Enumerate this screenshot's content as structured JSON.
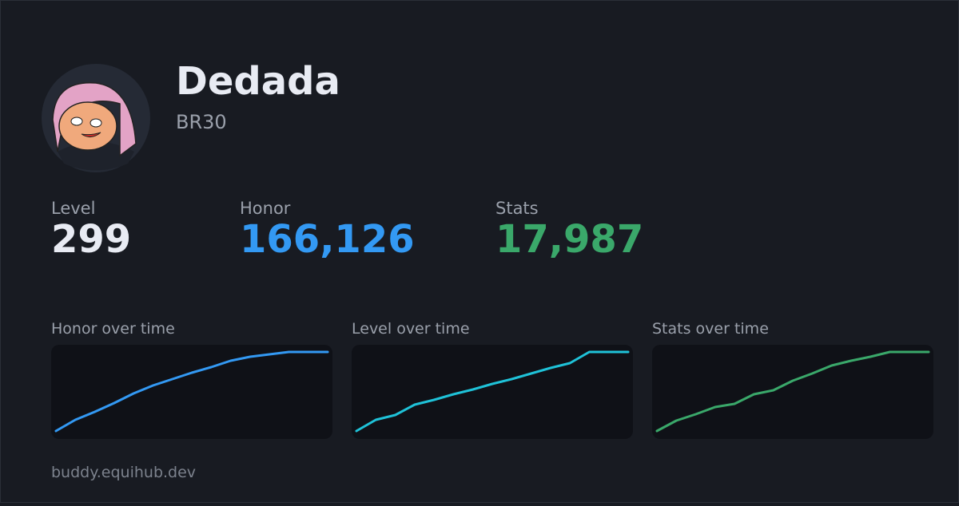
{
  "profile": {
    "name": "Dedada",
    "tag": "BR30"
  },
  "stats": [
    {
      "label": "Level",
      "value": "299",
      "color": "#e8ebf3"
    },
    {
      "label": "Honor",
      "value": "166,126",
      "color": "#3399f3"
    },
    {
      "label": "Stats",
      "value": "17,987",
      "color": "#3aa86a"
    }
  ],
  "charts": [
    {
      "type": "line",
      "title": "Honor over time",
      "color": "#3399f3",
      "values": [
        0,
        14,
        24,
        35,
        47,
        57,
        65,
        73,
        80,
        88,
        93,
        96,
        99,
        99,
        99
      ]
    },
    {
      "type": "line",
      "title": "Level over time",
      "color": "#1fc2d8",
      "values": [
        0,
        14,
        20,
        33,
        39,
        46,
        52,
        59,
        65,
        72,
        79,
        85,
        99,
        99,
        99
      ]
    },
    {
      "type": "line",
      "title": "Stats over time",
      "color": "#3aa86a",
      "values": [
        0,
        13,
        21,
        30,
        34,
        46,
        51,
        63,
        72,
        82,
        88,
        93,
        99,
        99,
        99
      ]
    }
  ],
  "footer": "buddy.equihub.dev"
}
